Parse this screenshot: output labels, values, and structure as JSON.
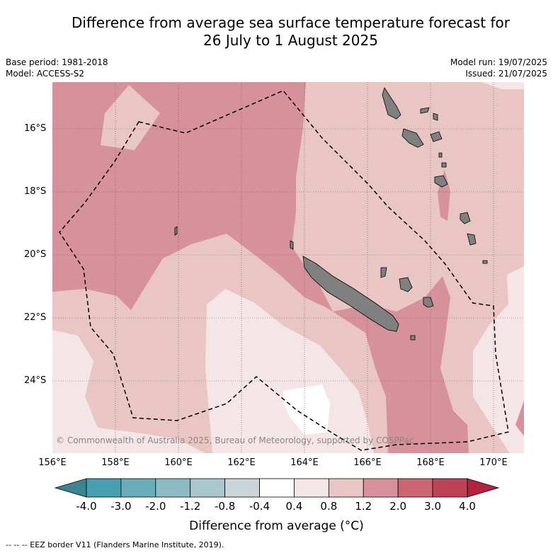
{
  "title_line1": "Difference from average sea surface temperature forecast for",
  "title_line2": "26 July to 1 August 2025",
  "base_period": "Base period: 1981-2018",
  "model": "Model: ACCESS-S2",
  "model_run": "Model run: 19/07/2025",
  "issued": "Issued: 21/07/2025",
  "copyright": "© Commonwealth of Australia 2025, Bureau of Meteorology, supported by COSPPac",
  "lat_labels": [
    "16°S",
    "18°S",
    "20°S",
    "22°S",
    "24°S"
  ],
  "lon_labels": [
    "156°E",
    "158°E",
    "160°E",
    "162°E",
    "164°E",
    "166°E",
    "168°E",
    "170°E"
  ],
  "colorbar": {
    "ticks": [
      "-4.0",
      "-3.0",
      "-2.0",
      "-1.2",
      "-0.8",
      "-0.4",
      "0.4",
      "0.8",
      "1.2",
      "2.0",
      "3.0",
      "4.0"
    ],
    "colors": [
      "#46a0b0",
      "#6aaebc",
      "#8cbac5",
      "#a9c7cc",
      "#cbd6da",
      "#ffffff",
      "#f4e6e6",
      "#e9c6c3",
      "#d6919a",
      "#cc6673",
      "#bd4455"
    ],
    "under_color": "#3c8590",
    "over_color": "#b5223e",
    "title": "Difference from average (°C)"
  },
  "legend_note": "--  --  -- EEZ border V11 (Flanders Marine Institute, 2019).",
  "colors": {
    "land": "#808080",
    "anomaly_0_4_0_8": "#f4e6e6",
    "anomaly_0_8_1_2": "#e9c6c3",
    "anomaly_1_2_2_0": "#d6919a",
    "anomaly_minus_0_4_0_4": "#ffffff"
  }
}
